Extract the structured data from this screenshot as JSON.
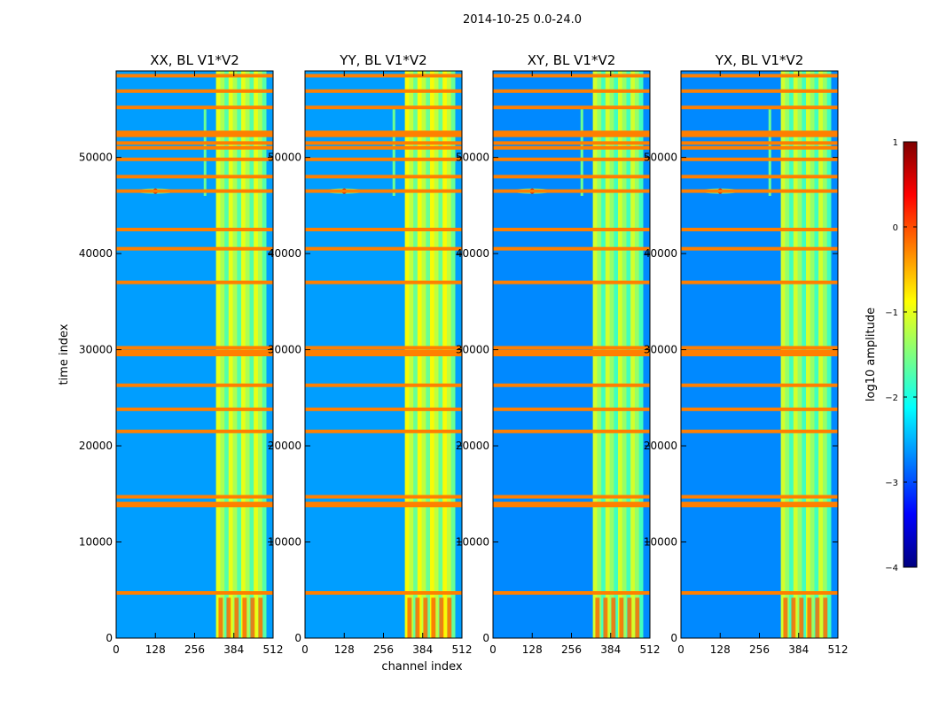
{
  "figure": {
    "suptitle": "2014-10-25 0.0-24.0",
    "ylabel": "time index",
    "xlabel": "channel index"
  },
  "chart_data": [
    {
      "type": "heatmap",
      "title": "XX, BL V1*V2",
      "xlim": [
        0,
        512
      ],
      "ylim": [
        0,
        59000
      ],
      "xticks": [
        0,
        128,
        256,
        384,
        512
      ],
      "yticks": [
        0,
        10000,
        20000,
        30000,
        40000,
        50000
      ],
      "xlabel": "",
      "ylabel": "time index",
      "bright_channels": [
        326,
        490
      ],
      "base_log10_amplitude": -2.6,
      "band_log10_amplitude": -1.2,
      "flagged_time_rows": [
        4700,
        13800,
        14000,
        14700,
        21500,
        23800,
        26300,
        29500,
        29800,
        30200,
        37000,
        40500,
        42500,
        46500,
        48000,
        49800,
        51000,
        51500,
        52300,
        52600,
        55200,
        56900,
        58500
      ],
      "features": [
        {
          "kind": "spike",
          "channel": 128,
          "time": 46500
        },
        {
          "kind": "vertical-line",
          "channel": 290,
          "from": 46000,
          "to": 55000
        }
      ]
    },
    {
      "type": "heatmap",
      "title": "YY, BL V1*V2",
      "xlim": [
        0,
        512
      ],
      "ylim": [
        0,
        59000
      ],
      "xticks": [
        0,
        128,
        256,
        384,
        512
      ],
      "yticks": [
        0,
        10000,
        20000,
        30000,
        40000,
        50000
      ],
      "xlabel": "channel index",
      "ylabel": "",
      "bright_channels": [
        326,
        490
      ],
      "base_log10_amplitude": -2.6,
      "band_log10_amplitude": -1.1,
      "flagged_time_rows": [
        4700,
        13800,
        14000,
        14700,
        21500,
        23800,
        26300,
        29500,
        29800,
        30200,
        37000,
        40500,
        42500,
        46500,
        48000,
        49800,
        51000,
        51500,
        52300,
        52600,
        55200,
        56900,
        58500
      ],
      "features": [
        {
          "kind": "spike",
          "channel": 128,
          "time": 46500
        },
        {
          "kind": "vertical-line",
          "channel": 290,
          "from": 46000,
          "to": 55000
        }
      ]
    },
    {
      "type": "heatmap",
      "title": "XY, BL V1*V2",
      "xlim": [
        0,
        512
      ],
      "ylim": [
        0,
        59000
      ],
      "xticks": [
        0,
        128,
        256,
        384,
        512
      ],
      "yticks": [
        0,
        10000,
        20000,
        30000,
        40000,
        50000
      ],
      "xlabel": "",
      "ylabel": "",
      "bright_channels": [
        326,
        490
      ],
      "base_log10_amplitude": -2.7,
      "band_log10_amplitude": -1.3,
      "flagged_time_rows": [
        4700,
        13800,
        14000,
        14700,
        21500,
        23800,
        26300,
        29500,
        29800,
        30200,
        37000,
        40500,
        42500,
        46500,
        48000,
        49800,
        51000,
        51500,
        52300,
        52600,
        55200,
        56900,
        58500
      ],
      "features": [
        {
          "kind": "spike",
          "channel": 128,
          "time": 46500
        },
        {
          "kind": "vertical-line",
          "channel": 290,
          "from": 46000,
          "to": 55000
        }
      ]
    },
    {
      "type": "heatmap",
      "title": "YX, BL V1*V2",
      "xlim": [
        0,
        512
      ],
      "ylim": [
        0,
        59000
      ],
      "xticks": [
        0,
        128,
        256,
        384,
        512
      ],
      "yticks": [
        0,
        10000,
        20000,
        30000,
        40000,
        50000
      ],
      "xlabel": "",
      "ylabel": "",
      "bright_channels": [
        326,
        490
      ],
      "base_log10_amplitude": -2.7,
      "band_log10_amplitude": -1.3,
      "flagged_time_rows": [
        4700,
        13800,
        14000,
        14700,
        21500,
        23800,
        26300,
        29500,
        29800,
        30200,
        37000,
        40500,
        42500,
        46500,
        48000,
        49800,
        51000,
        51500,
        52300,
        52600,
        55200,
        56900,
        58500
      ],
      "features": [
        {
          "kind": "spike",
          "channel": 128,
          "time": 46500
        },
        {
          "kind": "vertical-line",
          "channel": 290,
          "from": 46000,
          "to": 55000
        }
      ]
    }
  ],
  "colorbar": {
    "label": "log10 amplitude",
    "range": [
      -4,
      1
    ],
    "ticks": [
      1,
      0,
      -1,
      -2,
      -3,
      -4
    ],
    "tick_labels": [
      "1",
      "0",
      "−1",
      "−2",
      "−3",
      "−4"
    ],
    "colormap": "jet",
    "colormap_stops": [
      "#00007f",
      "#0000ff",
      "#007fff",
      "#00ffff",
      "#7fff7f",
      "#ffff00",
      "#ff7f00",
      "#ff0000",
      "#7f0000"
    ],
    "flag_color": "#ff7f00"
  }
}
